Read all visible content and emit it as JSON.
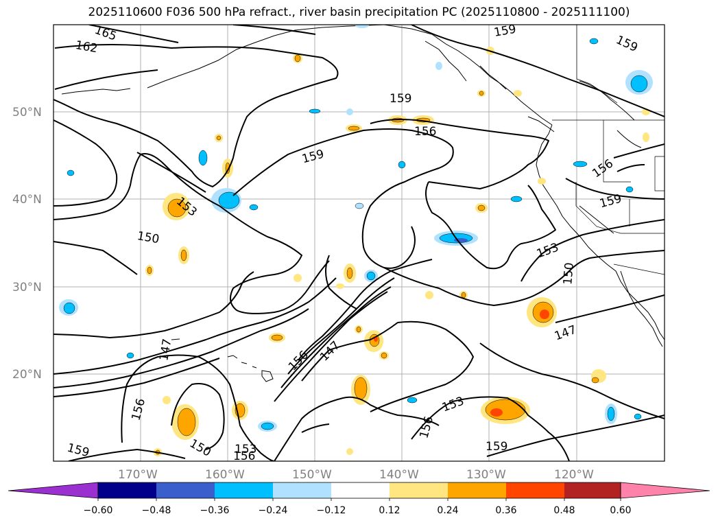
{
  "title": "2025110600 F036 500 hPa refract., river basin precipitation PC (2025110800 - 2025111100)",
  "lat_labels": [
    "50°N",
    "40°N",
    "30°N",
    "20°N"
  ],
  "lon_labels": [
    "170°W",
    "160°W",
    "150°W",
    "140°W",
    "130°W",
    "120°W"
  ],
  "contour_labels": [
    "165",
    "162",
    "159",
    "159",
    "159",
    "156",
    "159",
    "156",
    "159",
    "153",
    "150",
    "153",
    "150",
    "147",
    "147",
    "156",
    "147",
    "156",
    "153",
    "156",
    "159",
    "150",
    "153",
    "156",
    "159"
  ],
  "colorbar": {
    "ticks": [
      "−0.60",
      "−0.48",
      "−0.36",
      "−0.24",
      "−0.12",
      "0.12",
      "0.24",
      "0.36",
      "0.48",
      "0.60"
    ],
    "colors": [
      "#9b30d0",
      "#00008b",
      "#3a5fcd",
      "#00bfff",
      "#b0e2ff",
      "#ffffff",
      "#ffe680",
      "#ffa500",
      "#ff4500",
      "#b22222",
      "#ff82ab"
    ]
  }
}
